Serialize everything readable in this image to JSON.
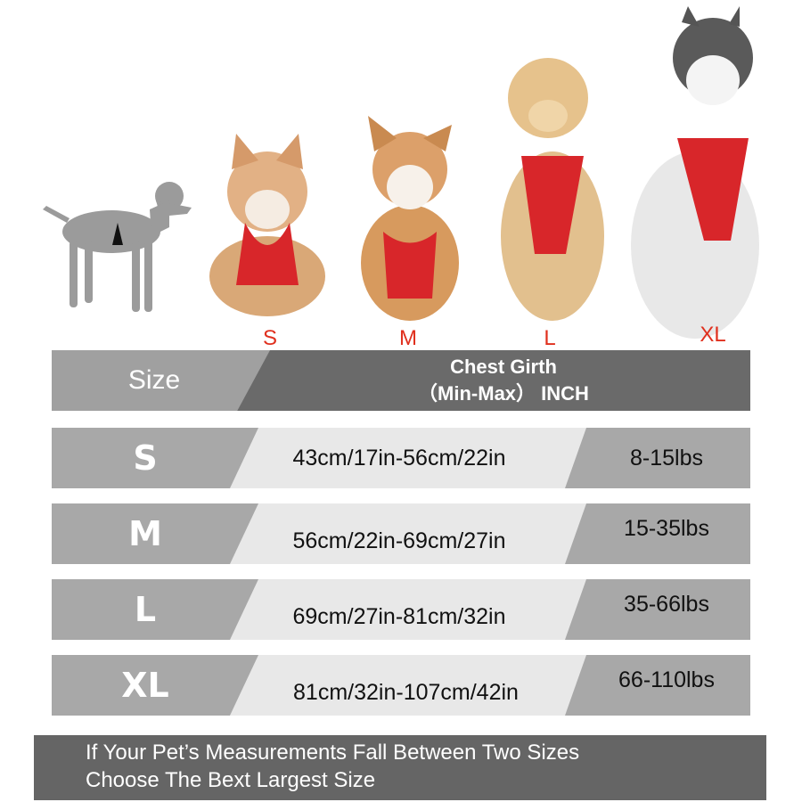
{
  "dogs": [
    {
      "label": "S",
      "breed": "corgi-puppy"
    },
    {
      "label": "M",
      "breed": "corgi"
    },
    {
      "label": "L",
      "breed": "golden-retriever"
    },
    {
      "label": "XL",
      "breed": "husky"
    }
  ],
  "header": {
    "size": "Size",
    "chest_line1": "Chest Girth",
    "chest_line2": "（Min-Max） INCH"
  },
  "rows": [
    {
      "size": "S",
      "range": "43cm/17in-56cm/22in",
      "weight": "8-15lbs"
    },
    {
      "size": "M",
      "range": "56cm/22in-69cm/27in",
      "weight": "15-35lbs"
    },
    {
      "size": "L",
      "range": "69cm/27in-81cm/32in",
      "weight": "35-66lbs"
    },
    {
      "size": "XL",
      "range": "81cm/32in-107cm/42in",
      "weight": "66-110lbs"
    }
  ],
  "footer": {
    "line1": "If Your Pet’s Measurements Fall Between Two Sizes",
    "line2": "Choose The Bext Largest Size"
  },
  "colors": {
    "label_red": "#e0301e",
    "harness_red": "#d8262a",
    "dark_gray": "#656565",
    "mid_gray": "#9a9a9a",
    "light_gray": "#e6e6e6"
  }
}
